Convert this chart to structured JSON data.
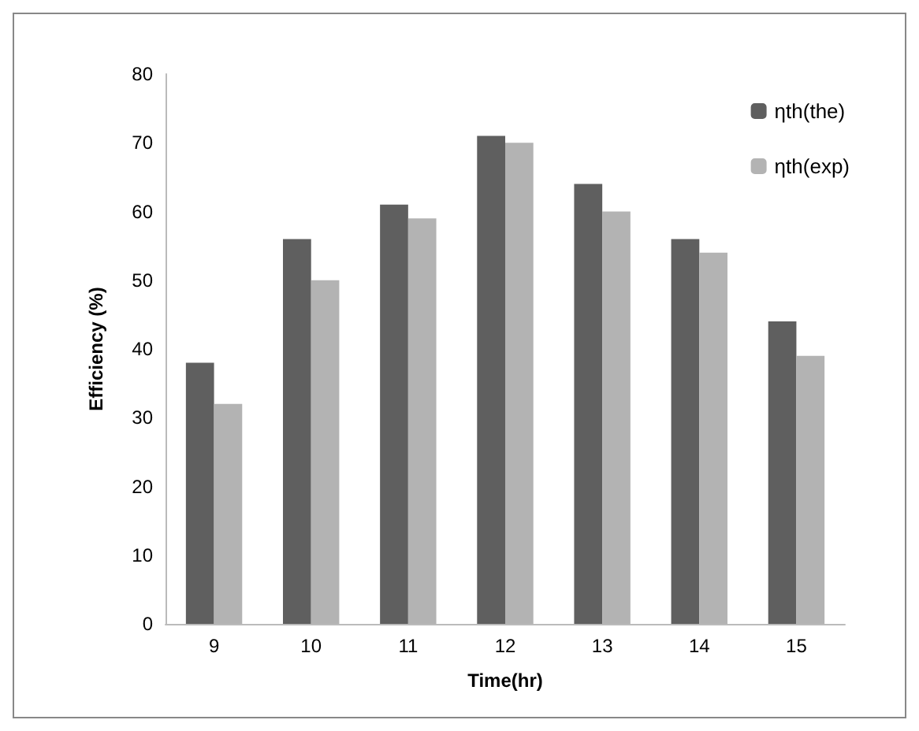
{
  "chart_data": {
    "type": "bar",
    "xlabel": "Time(hr)",
    "ylabel": "Efficiency (%)",
    "categories": [
      "9",
      "10",
      "11",
      "12",
      "13",
      "14",
      "15"
    ],
    "series": [
      {
        "name": "ηth(the)",
        "color": "#5f5f5f",
        "values": [
          38,
          56,
          61,
          71,
          64,
          56,
          44
        ]
      },
      {
        "name": "ηth(exp)",
        "color": "#b3b3b3",
        "values": [
          32,
          50,
          59,
          70,
          60,
          54,
          39
        ]
      }
    ],
    "ylim": [
      0,
      80
    ],
    "yticks": [
      0,
      10,
      20,
      30,
      40,
      50,
      60,
      70,
      80
    ],
    "grid": false,
    "legend": "top right"
  }
}
